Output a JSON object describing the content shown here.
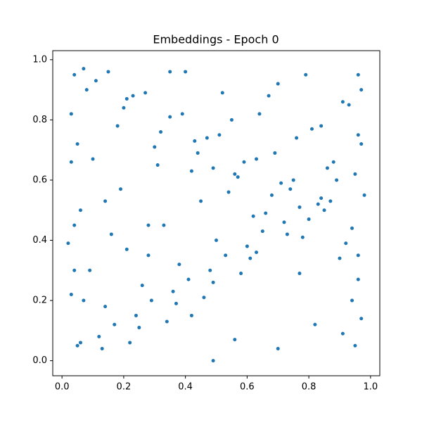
{
  "chart_data": {
    "type": "scatter",
    "title": "Embeddings - Epoch 0",
    "color": "#1f77b4",
    "xlim": [
      -0.03,
      1.03
    ],
    "ylim": [
      -0.05,
      1.03
    ],
    "xticks": [
      {
        "value": 0,
        "label": "0.0"
      },
      0.2,
      0.4,
      0.6,
      0.8,
      {
        "value": 1,
        "label": "1.0"
      }
    ],
    "yticks": [
      {
        "value": 0,
        "label": "0.0"
      },
      0.2,
      0.4,
      0.6,
      0.8,
      {
        "value": 1,
        "label": "1.0"
      }
    ],
    "x": [
      0.49,
      0.02,
      0.04,
      0.05,
      0.07,
      0.96,
      0.97,
      0.95,
      0.98,
      0.06,
      0.11,
      0.17,
      0.23,
      0.29,
      0.35,
      0.41,
      0.47,
      0.53,
      0.59,
      0.65,
      0.71,
      0.77,
      0.83,
      0.89,
      0.94,
      0.08,
      0.14,
      0.2,
      0.26,
      0.32,
      0.38,
      0.44,
      0.5,
      0.56,
      0.62,
      0.68,
      0.74,
      0.8,
      0.86,
      0.92,
      0.05,
      0.12,
      0.18,
      0.24,
      0.3,
      0.36,
      0.42,
      0.48,
      0.54,
      0.6,
      0.66,
      0.72,
      0.78,
      0.84,
      0.9,
      0.95,
      0.09,
      0.15,
      0.21,
      0.27,
      0.33,
      0.39,
      0.45,
      0.51,
      0.57,
      0.63,
      0.69,
      0.75,
      0.81,
      0.87,
      0.93,
      0.06,
      0.13,
      0.19,
      0.25,
      0.31,
      0.37,
      0.43,
      0.49,
      0.55,
      0.61,
      0.67,
      0.73,
      0.79,
      0.85,
      0.91,
      0.1,
      0.16,
      0.22,
      0.28,
      0.34,
      0.4,
      0.46,
      0.52,
      0.58,
      0.64,
      0.7,
      0.76,
      0.82,
      0.88,
      0.94,
      0.07,
      0.14,
      0.21,
      0.28,
      0.35,
      0.42,
      0.49,
      0.56,
      0.63,
      0.7,
      0.77,
      0.84,
      0.91,
      0.96,
      0.04,
      0.03,
      0.03,
      0.03,
      0.04,
      0.97,
      0.96,
      0.97,
      0.96
    ],
    "y": [
      0.0,
      0.39,
      0.95,
      0.05,
      0.97,
      0.95,
      0.14,
      0.05,
      0.55,
      0.06,
      0.93,
      0.12,
      0.88,
      0.2,
      0.81,
      0.27,
      0.74,
      0.35,
      0.66,
      0.43,
      0.59,
      0.51,
      0.52,
      0.6,
      0.44,
      0.9,
      0.18,
      0.84,
      0.25,
      0.76,
      0.32,
      0.69,
      0.4,
      0.62,
      0.48,
      0.55,
      0.57,
      0.47,
      0.64,
      0.39,
      0.72,
      0.08,
      0.78,
      0.15,
      0.71,
      0.23,
      0.63,
      0.3,
      0.56,
      0.38,
      0.49,
      0.46,
      0.41,
      0.54,
      0.34,
      0.62,
      0.3,
      0.96,
      0.37,
      0.89,
      0.45,
      0.82,
      0.53,
      0.75,
      0.61,
      0.67,
      0.69,
      0.6,
      0.77,
      0.53,
      0.85,
      0.5,
      0.04,
      0.57,
      0.11,
      0.65,
      0.19,
      0.73,
      0.26,
      0.8,
      0.34,
      0.88,
      0.42,
      0.95,
      0.5,
      0.09,
      0.67,
      0.42,
      0.06,
      0.35,
      0.13,
      0.96,
      0.21,
      0.89,
      0.29,
      0.82,
      0.04,
      0.74,
      0.12,
      0.66,
      0.2,
      0.2,
      0.53,
      0.87,
      0.45,
      0.96,
      0.15,
      0.64,
      0.07,
      0.36,
      0.92,
      0.29,
      0.78,
      0.86,
      0.75,
      0.3,
      0.22,
      0.66,
      0.82,
      0.45,
      0.9,
      0.27,
      0.72,
      0.35
    ]
  }
}
